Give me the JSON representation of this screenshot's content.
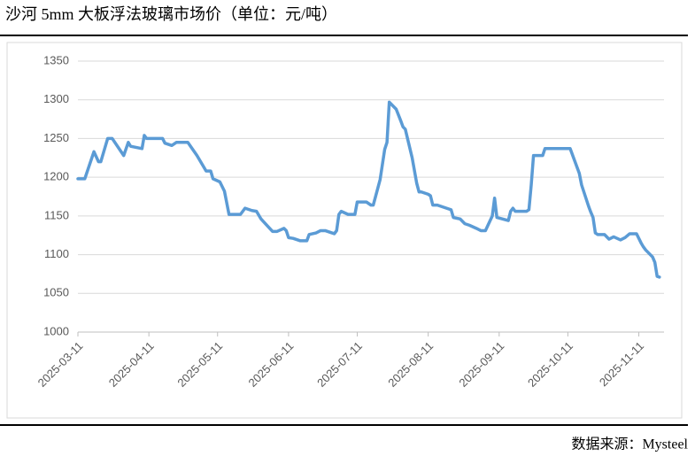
{
  "chart_data": {
    "type": "line",
    "title": "沙河 5mm 大板浮法玻璃市场价（单位：元/吨）",
    "source": "数据来源：Mysteel",
    "color": "#5b9bd5",
    "grid": true,
    "ylim": [
      1000,
      1350
    ],
    "yticks": [
      1000,
      1050,
      1100,
      1150,
      1200,
      1250,
      1300,
      1350
    ],
    "xlim": [
      "2025-03-11",
      "2025-11-22"
    ],
    "xticks": [
      "2025-03-11",
      "2025-04-11",
      "2025-05-11",
      "2025-06-11",
      "2025-07-11",
      "2025-08-11",
      "2025-09-11",
      "2025-10-11",
      "2025-11-11"
    ],
    "x": [
      "2025-03-11",
      "2025-03-14",
      "2025-03-18",
      "2025-03-20",
      "2025-03-21",
      "2025-03-24",
      "2025-03-26",
      "2025-03-31",
      "2025-04-02",
      "2025-04-03",
      "2025-04-08",
      "2025-04-09",
      "2025-04-10",
      "2025-04-17",
      "2025-04-18",
      "2025-04-21",
      "2025-04-23",
      "2025-04-28",
      "2025-05-02",
      "2025-05-06",
      "2025-05-08",
      "2025-05-09",
      "2025-05-12",
      "2025-05-14",
      "2025-05-16",
      "2025-05-21",
      "2025-05-23",
      "2025-05-26",
      "2025-05-28",
      "2025-05-30",
      "2025-06-04",
      "2025-06-06",
      "2025-06-09",
      "2025-06-10",
      "2025-06-11",
      "2025-06-13",
      "2025-06-16",
      "2025-06-19",
      "2025-06-20",
      "2025-06-23",
      "2025-06-25",
      "2025-06-27",
      "2025-07-01",
      "2025-07-02",
      "2025-07-03",
      "2025-07-04",
      "2025-07-07",
      "2025-07-10",
      "2025-07-11",
      "2025-07-15",
      "2025-07-17",
      "2025-07-18",
      "2025-07-21",
      "2025-07-23",
      "2025-07-24",
      "2025-07-25",
      "2025-07-28",
      "2025-07-30",
      "2025-07-31",
      "2025-08-01",
      "2025-08-04",
      "2025-08-06",
      "2025-08-07",
      "2025-08-08",
      "2025-08-11",
      "2025-08-12",
      "2025-08-13",
      "2025-08-15",
      "2025-08-19",
      "2025-08-21",
      "2025-08-22",
      "2025-08-25",
      "2025-08-27",
      "2025-08-29",
      "2025-09-01",
      "2025-09-03",
      "2025-09-05",
      "2025-09-08",
      "2025-09-09",
      "2025-09-10",
      "2025-09-15",
      "2025-09-16",
      "2025-09-17",
      "2025-09-18",
      "2025-09-23",
      "2025-09-24",
      "2025-09-25",
      "2025-09-26",
      "2025-09-30",
      "2025-10-01",
      "2025-10-12",
      "2025-10-16",
      "2025-10-17",
      "2025-10-20",
      "2025-10-21",
      "2025-10-22",
      "2025-10-23",
      "2025-10-24",
      "2025-10-27",
      "2025-10-29",
      "2025-10-31",
      "2025-11-03",
      "2025-11-05",
      "2025-11-07",
      "2025-11-10",
      "2025-11-12",
      "2025-11-13",
      "2025-11-14",
      "2025-11-17",
      "2025-11-18",
      "2025-11-19",
      "2025-11-20"
    ],
    "values": [
      1198,
      1198,
      1233,
      1220,
      1220,
      1250,
      1250,
      1228,
      1245,
      1240,
      1237,
      1254,
      1250,
      1250,
      1244,
      1241,
      1245,
      1245,
      1228,
      1208,
      1208,
      1198,
      1194,
      1182,
      1152,
      1152,
      1160,
      1157,
      1156,
      1146,
      1130,
      1130,
      1134,
      1131,
      1122,
      1121,
      1118,
      1118,
      1126,
      1128,
      1131,
      1131,
      1127,
      1131,
      1152,
      1156,
      1152,
      1152,
      1168,
      1168,
      1164,
      1164,
      1197,
      1236,
      1245,
      1297,
      1288,
      1273,
      1265,
      1262,
      1225,
      1192,
      1181,
      1181,
      1178,
      1176,
      1164,
      1164,
      1160,
      1158,
      1148,
      1146,
      1140,
      1138,
      1134,
      1131,
      1131,
      1150,
      1173,
      1148,
      1144,
      1156,
      1160,
      1156,
      1156,
      1158,
      1190,
      1228,
      1228,
      1237,
      1237,
      1205,
      1190,
      1163,
      1155,
      1148,
      1128,
      1126,
      1126,
      1120,
      1123,
      1119,
      1122,
      1127,
      1127,
      1115,
      1110,
      1106,
      1097,
      1090,
      1072,
      1071
    ]
  }
}
